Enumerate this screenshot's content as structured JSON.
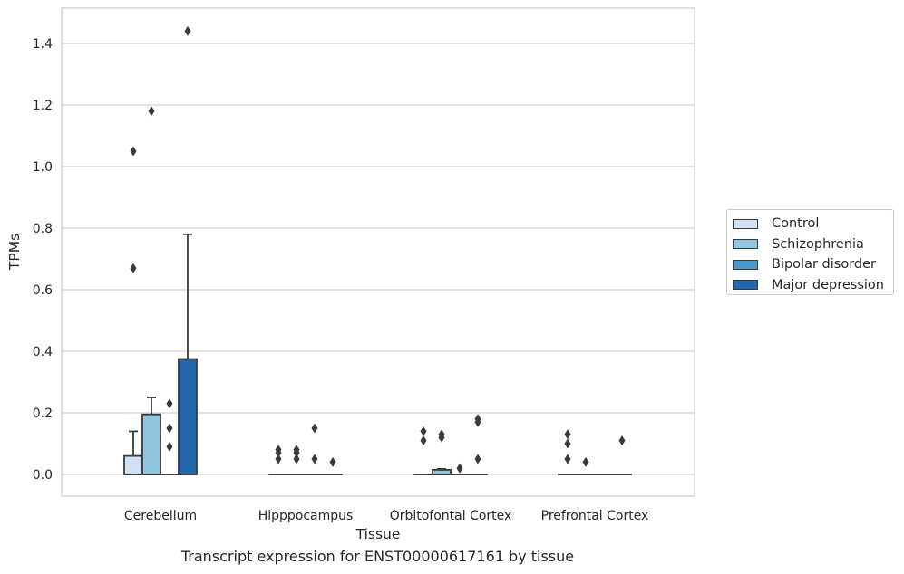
{
  "caption": "Transcript expression for ENST00000617161 by tissue",
  "chart_data": {
    "type": "box",
    "xlabel": "Tissue",
    "ylabel": "TPMs",
    "ylim": [
      -0.07,
      1.52
    ],
    "yticks": [
      "0.0",
      "0.2",
      "0.4",
      "0.6",
      "0.8",
      "1.0",
      "1.2",
      "1.4"
    ],
    "grid": "horizontal",
    "legend_placement": "right",
    "categories": [
      "Cerebellum",
      "Hipppocampus",
      "Orbitofontal Cortex",
      "Prefrontal Cortex"
    ],
    "series": [
      {
        "name": "Control",
        "color": "#cfe1f2",
        "boxes": [
          {
            "q1": 0.0,
            "median": 0.0,
            "q3": 0.06,
            "whisker_low": 0.0,
            "whisker_high": 0.14,
            "outliers": [
              0.67,
              1.05
            ]
          },
          {
            "q1": 0.0,
            "median": 0.0,
            "q3": 0.0,
            "whisker_low": 0.0,
            "whisker_high": 0.0,
            "outliers": [
              0.05,
              0.07,
              0.08
            ]
          },
          {
            "q1": 0.0,
            "median": 0.0,
            "q3": 0.0,
            "whisker_low": 0.0,
            "whisker_high": 0.0,
            "outliers": [
              0.11,
              0.14
            ]
          },
          {
            "q1": 0.0,
            "median": 0.0,
            "q3": 0.0,
            "whisker_low": 0.0,
            "whisker_high": 0.0,
            "outliers": [
              0.05,
              0.1,
              0.13
            ]
          }
        ]
      },
      {
        "name": "Schizophrenia",
        "color": "#93c4de",
        "boxes": [
          {
            "q1": 0.0,
            "median": 0.0,
            "q3": 0.195,
            "whisker_low": 0.0,
            "whisker_high": 0.25,
            "outliers": [
              1.18
            ]
          },
          {
            "q1": 0.0,
            "median": 0.0,
            "q3": 0.0,
            "whisker_low": 0.0,
            "whisker_high": 0.0,
            "outliers": [
              0.05,
              0.07,
              0.08
            ]
          },
          {
            "q1": 0.0,
            "median": 0.0,
            "q3": 0.015,
            "whisker_low": 0.0,
            "whisker_high": 0.018,
            "outliers": [
              0.12,
              0.13
            ]
          },
          {
            "q1": 0.0,
            "median": 0.0,
            "q3": 0.0,
            "whisker_low": 0.0,
            "whisker_high": 0.0,
            "outliers": [
              0.04
            ]
          }
        ]
      },
      {
        "name": "Bipolar disorder",
        "color": "#4a98c9",
        "boxes": [
          {
            "q1": 0.0,
            "median": 0.0,
            "q3": 0.0,
            "whisker_low": 0.0,
            "whisker_high": 0.0,
            "outliers": [
              0.09,
              0.15,
              0.23
            ]
          },
          {
            "q1": 0.0,
            "median": 0.0,
            "q3": 0.0,
            "whisker_low": 0.0,
            "whisker_high": 0.0,
            "outliers": [
              0.05,
              0.15
            ]
          },
          {
            "q1": 0.0,
            "median": 0.0,
            "q3": 0.0,
            "whisker_low": 0.0,
            "whisker_high": 0.0,
            "outliers": [
              0.02
            ]
          },
          {
            "q1": 0.0,
            "median": 0.0,
            "q3": 0.0,
            "whisker_low": 0.0,
            "whisker_high": 0.0,
            "outliers": []
          }
        ]
      },
      {
        "name": "Major depression",
        "color": "#2266ac",
        "boxes": [
          {
            "q1": 0.0,
            "median": 0.0,
            "q3": 0.375,
            "whisker_low": 0.0,
            "whisker_high": 0.78,
            "outliers": [
              1.44
            ]
          },
          {
            "q1": 0.0,
            "median": 0.0,
            "q3": 0.0,
            "whisker_low": 0.0,
            "whisker_high": 0.0,
            "outliers": [
              0.04
            ]
          },
          {
            "q1": 0.0,
            "median": 0.0,
            "q3": 0.0,
            "whisker_low": 0.0,
            "whisker_high": 0.0,
            "outliers": [
              0.05,
              0.17,
              0.18
            ]
          },
          {
            "q1": 0.0,
            "median": 0.0,
            "q3": 0.0,
            "whisker_low": 0.0,
            "whisker_high": 0.0,
            "outliers": [
              0.11
            ]
          }
        ]
      }
    ]
  }
}
